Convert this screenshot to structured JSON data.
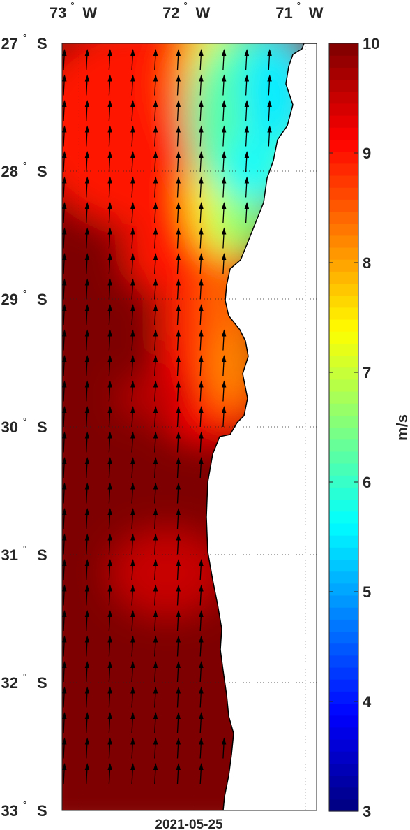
{
  "map": {
    "date_label": "2021-05-25",
    "lon_labels": [
      {
        "deg": "73",
        "hemi": "W",
        "lon": -73
      },
      {
        "deg": "72",
        "hemi": "W",
        "lon": -72
      },
      {
        "deg": "71",
        "hemi": "W",
        "lon": -71
      }
    ],
    "lat_labels": [
      {
        "deg": "27",
        "hemi": "S",
        "lat": -27
      },
      {
        "deg": "28",
        "hemi": "S",
        "lat": -28
      },
      {
        "deg": "29",
        "hemi": "S",
        "lat": -29
      },
      {
        "deg": "30",
        "hemi": "S",
        "lat": -30
      },
      {
        "deg": "31",
        "hemi": "S",
        "lat": -31
      },
      {
        "deg": "32",
        "hemi": "S",
        "lat": -32
      },
      {
        "deg": "33",
        "hemi": "S",
        "lat": -33
      }
    ],
    "lon_range": [
      -73.15,
      -70.9
    ],
    "lat_range": [
      -33,
      -27
    ],
    "grid": "dotted",
    "vector_direction": "northward"
  },
  "colorbar": {
    "unit": "m/s",
    "min": 3,
    "max": 10,
    "ticks": [
      "3",
      "4",
      "5",
      "6",
      "7",
      "8",
      "9",
      "10"
    ],
    "colormap": "jet",
    "colors": [
      "#00007f",
      "#0000ff",
      "#007fff",
      "#00ffff",
      "#7fff7f",
      "#ffff00",
      "#ff7f00",
      "#ff0000",
      "#7f0000"
    ]
  },
  "colors": {
    "land": "#ffffff",
    "coast": "#000000",
    "arrow": "#000000",
    "text": "#262626"
  }
}
